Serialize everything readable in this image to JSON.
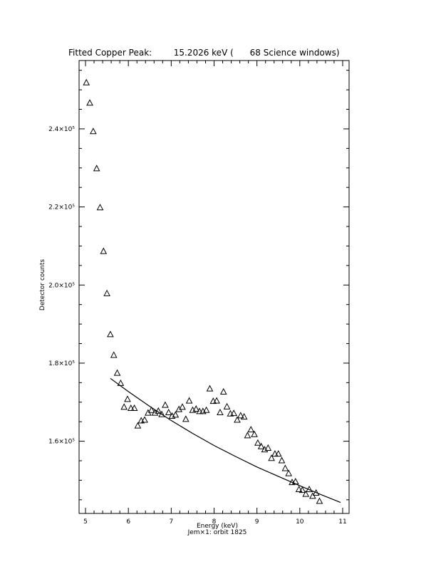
{
  "chart_data": {
    "type": "scatter",
    "title": "Fitted Copper Peak:        15.2026 keV (      68 Science windows)",
    "xlabel": "Energy (keV)",
    "ylabel": "Detector counts",
    "subtitle": "Jem×1: orbit 1825",
    "xlim": [
      4.85,
      11.15
    ],
    "ylim": [
      141500,
      257500
    ],
    "x_ticks": [
      5,
      6,
      7,
      8,
      9,
      10,
      11
    ],
    "y_ticks": [
      {
        "value": 160000,
        "label": "1.6×10⁵"
      },
      {
        "value": 180000,
        "label": "1.8×10⁵"
      },
      {
        "value": 200000,
        "label": "2.0×10⁵"
      },
      {
        "value": 220000,
        "label": "2.2×10⁵"
      },
      {
        "value": 240000,
        "label": "2.4×10⁵"
      }
    ],
    "grid": false,
    "series": [
      {
        "marker": "triangle",
        "points": [
          [
            5.02,
            251800
          ],
          [
            5.1,
            246600
          ],
          [
            5.18,
            239300
          ],
          [
            5.26,
            229800
          ],
          [
            5.34,
            219800
          ],
          [
            5.42,
            208600
          ],
          [
            5.5,
            197800
          ],
          [
            5.58,
            187300
          ],
          [
            5.66,
            182000
          ],
          [
            5.74,
            177400
          ],
          [
            5.82,
            174800
          ],
          [
            5.9,
            168700
          ],
          [
            5.98,
            170700
          ],
          [
            6.06,
            168400
          ],
          [
            6.14,
            168400
          ],
          [
            6.22,
            163900
          ],
          [
            6.3,
            165200
          ],
          [
            6.38,
            165400
          ],
          [
            6.46,
            167200
          ],
          [
            6.54,
            167900
          ],
          [
            6.62,
            167200
          ],
          [
            6.7,
            167700
          ],
          [
            6.78,
            166800
          ],
          [
            6.86,
            169200
          ],
          [
            6.94,
            167300
          ],
          [
            7.02,
            166400
          ],
          [
            7.1,
            166700
          ],
          [
            7.18,
            168100
          ],
          [
            7.26,
            168700
          ],
          [
            7.34,
            165600
          ],
          [
            7.42,
            170300
          ],
          [
            7.5,
            167900
          ],
          [
            7.58,
            168200
          ],
          [
            7.66,
            167600
          ],
          [
            7.74,
            167600
          ],
          [
            7.82,
            167900
          ],
          [
            7.9,
            173400
          ],
          [
            7.98,
            170200
          ],
          [
            8.06,
            170300
          ],
          [
            8.14,
            167300
          ],
          [
            8.22,
            172600
          ],
          [
            8.3,
            168800
          ],
          [
            8.38,
            167000
          ],
          [
            8.46,
            167100
          ],
          [
            8.54,
            165400
          ],
          [
            8.62,
            166500
          ],
          [
            8.7,
            166200
          ],
          [
            8.78,
            161400
          ],
          [
            8.86,
            162900
          ],
          [
            8.94,
            161700
          ],
          [
            9.02,
            159500
          ],
          [
            9.1,
            158600
          ],
          [
            9.18,
            157800
          ],
          [
            9.26,
            158200
          ],
          [
            9.34,
            155600
          ],
          [
            9.42,
            156700
          ],
          [
            9.5,
            156700
          ],
          [
            9.58,
            155000
          ],
          [
            9.66,
            153000
          ],
          [
            9.74,
            151700
          ],
          [
            9.82,
            149400
          ],
          [
            9.9,
            149600
          ],
          [
            9.98,
            147600
          ],
          [
            10.06,
            147400
          ],
          [
            10.14,
            146400
          ],
          [
            10.22,
            147600
          ],
          [
            10.3,
            145900
          ],
          [
            10.38,
            146700
          ],
          [
            10.46,
            144600
          ]
        ]
      },
      {
        "name": "fit",
        "type": "line",
        "x": [
          5.58,
          6.0,
          6.5,
          7.0,
          7.5,
          8.0,
          8.5,
          9.0,
          9.5,
          10.0,
          10.5,
          10.95
        ],
        "values": [
          176100,
          172700,
          168900,
          165300,
          162000,
          158900,
          156100,
          153400,
          151000,
          148600,
          146300,
          144300
        ]
      }
    ]
  },
  "colors": {
    "ink": "#000000",
    "background": "#ffffff"
  }
}
